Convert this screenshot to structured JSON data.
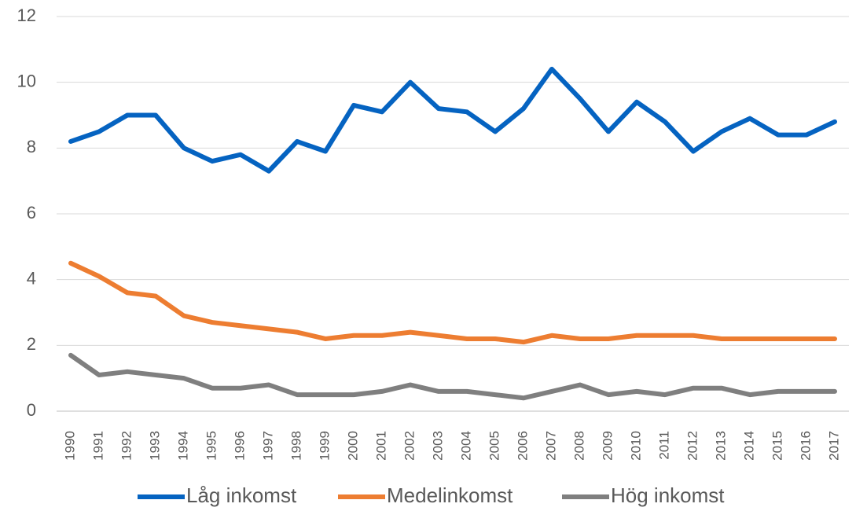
{
  "chart_data": {
    "type": "line",
    "categories": [
      "1990",
      "1991",
      "1992",
      "1993",
      "1994",
      "1995",
      "1996",
      "1997",
      "1998",
      "1999",
      "2000",
      "2001",
      "2002",
      "2003",
      "2004",
      "2005",
      "2006",
      "2007",
      "2008",
      "2009",
      "2010",
      "2011",
      "2012",
      "2013",
      "2014",
      "2015",
      "2016",
      "2017"
    ],
    "series": [
      {
        "name": "Låg inkomst",
        "color": "#0563c1",
        "values": [
          8.2,
          8.5,
          9.0,
          9.0,
          8.0,
          7.6,
          7.8,
          7.3,
          8.2,
          7.9,
          9.3,
          9.1,
          10.0,
          9.2,
          9.1,
          8.5,
          9.2,
          10.4,
          9.5,
          8.5,
          9.4,
          8.8,
          7.9,
          8.5,
          8.9,
          8.4,
          8.4,
          8.8
        ]
      },
      {
        "name": "Medelinkomst",
        "color": "#ed7d31",
        "values": [
          4.5,
          4.1,
          3.6,
          3.5,
          2.9,
          2.7,
          2.6,
          2.5,
          2.4,
          2.2,
          2.3,
          2.3,
          2.4,
          2.3,
          2.2,
          2.2,
          2.1,
          2.3,
          2.2,
          2.2,
          2.3,
          2.3,
          2.3,
          2.2,
          2.2,
          2.2,
          2.2,
          2.2
        ]
      },
      {
        "name": "Hög inkomst",
        "color": "#7f7f7f",
        "values": [
          1.7,
          1.1,
          1.2,
          1.1,
          1.0,
          0.7,
          0.7,
          0.8,
          0.5,
          0.5,
          0.5,
          0.6,
          0.8,
          0.6,
          0.6,
          0.5,
          0.4,
          0.6,
          0.8,
          0.5,
          0.6,
          0.5,
          0.7,
          0.7,
          0.5,
          0.6,
          0.6,
          0.6
        ]
      }
    ],
    "ylim": [
      0,
      12
    ],
    "yticks": [
      0,
      2,
      4,
      6,
      8,
      10,
      12
    ],
    "grid": true,
    "legend": "bottom"
  }
}
